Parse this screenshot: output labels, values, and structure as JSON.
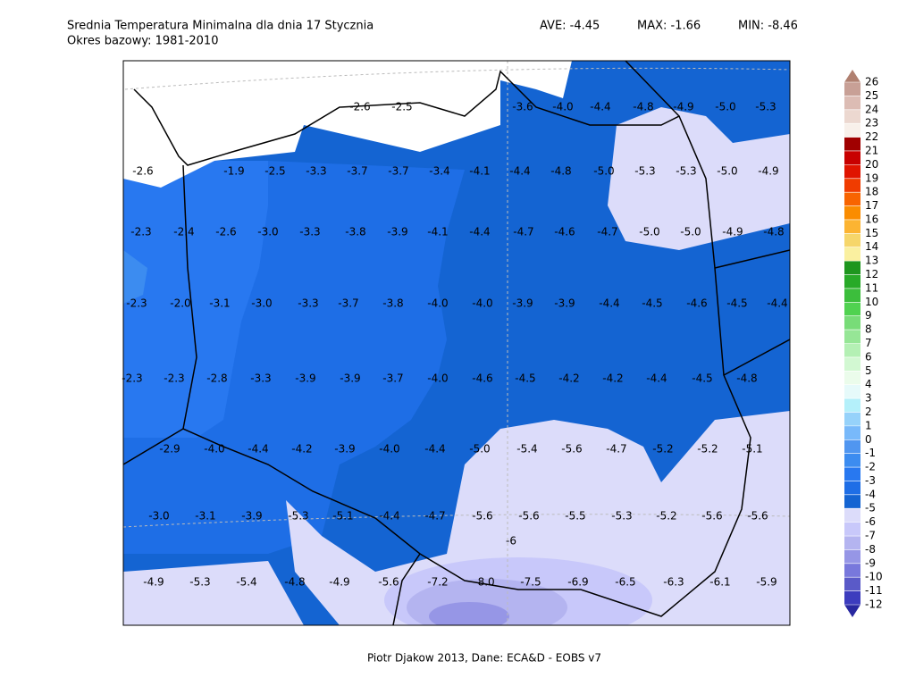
{
  "header": {
    "title": "Srednia Temperatura Minimalna dla dnia 17 Stycznia",
    "subtitle": "Okres bazowy: 1981-2010",
    "stats": [
      "AVE: -4.45",
      "MAX: -1.66",
      "MIN: -8.46"
    ]
  },
  "map": {
    "label_rows": [
      [
        "-2.6",
        "-2.5",
        "-3.6",
        "-4.0",
        "-4.4",
        "-4.8",
        "-4.9",
        "-5.0",
        "-5.3"
      ],
      [
        "-2.6",
        "-1.9",
        "-2.5",
        "-3.3",
        "-3.7",
        "-3.7",
        "-3.4",
        "-4.1",
        "-4.4",
        "-4.8",
        "-5.0",
        "-5.3",
        "-5.3",
        "-5.0",
        "-4.9"
      ],
      [
        "-2.3",
        "-2.4",
        "-2.6",
        "-3.0",
        "-3.3",
        "-3.8",
        "-3.9",
        "-4.1",
        "-4.4",
        "-4.7",
        "-4.6",
        "-4.7",
        "-5.0",
        "-5.0",
        "-4.9",
        "-4.8"
      ],
      [
        "-2.3",
        "-2.0",
        "-3.1",
        "-3.0",
        "-3.3",
        "-3.7",
        "-3.8",
        "-4.0",
        "-4.0",
        "-3.9",
        "-3.9",
        "-4.4",
        "-4.5",
        "-4.6",
        "-4.5",
        "-4.4"
      ],
      [
        "-2.3",
        "-2.3",
        "-2.8",
        "-3.3",
        "-3.9",
        "-3.9",
        "-3.7",
        "-4.0",
        "-4.6",
        "-4.5",
        "-4.2",
        "-4.2",
        "-4.4",
        "-4.5",
        "-4.8"
      ],
      [
        "-2.9",
        "-4.0",
        "-4.4",
        "-4.2",
        "-3.9",
        "-4.0",
        "-4.4",
        "-5.0",
        "-5.4",
        "-5.6",
        "-4.7",
        "-5.2",
        "-5.2",
        "-5.1"
      ],
      [
        "-3.0",
        "-3.1",
        "-3.9",
        "-5.3",
        "-5.1",
        "-4.4",
        "-4.7",
        "-5.6",
        "-5.6",
        "-5.5",
        "-5.3",
        "-5.2",
        "-5.6",
        "-5.6"
      ],
      [
        "-6"
      ],
      [
        "-4.9",
        "-5.3",
        "-5.4",
        "-4.8",
        "-4.9",
        "-5.6",
        "-7.2",
        "-8.0",
        "-7.5",
        "-6.9",
        "-6.5",
        "-6.3",
        "-6.1",
        "-5.9"
      ]
    ]
  },
  "colorbar": {
    "levels": [
      26,
      25,
      24,
      23,
      22,
      21,
      20,
      19,
      18,
      17,
      16,
      15,
      14,
      13,
      12,
      11,
      10,
      9,
      8,
      7,
      6,
      5,
      4,
      3,
      2,
      1,
      0,
      -1,
      -2,
      -3,
      -4,
      -5,
      -6,
      -7,
      -8,
      -9,
      -10,
      -11,
      -12
    ],
    "colors": [
      "#b08070",
      "#c8a096",
      "#dcbcb4",
      "#ecd8d0",
      "#f8f0ea",
      "#a00000",
      "#c80000",
      "#e01400",
      "#f03c00",
      "#f86400",
      "#fa8c00",
      "#fcb432",
      "#f6d66a",
      "#faf0a0",
      "#1e961e",
      "#28aa28",
      "#3cbe3c",
      "#50d250",
      "#78dc78",
      "#96e696",
      "#b4f0b4",
      "#d2f8d2",
      "#ebfceb",
      "#e6fafa",
      "#b4f0fa",
      "#96d2fa",
      "#78b9fa",
      "#5096f0",
      "#3c8cf0",
      "#2878f0",
      "#1e6ee6",
      "#1464d2",
      "#dcdcfa",
      "#c8c8fa",
      "#b4b4f0",
      "#9696e6",
      "#7878dc",
      "#5a5ac8",
      "#3c3cbe",
      "#2828a0"
    ]
  },
  "footer": "Piotr Djakow 2013, Dane: ECA&D - EOBS v7"
}
